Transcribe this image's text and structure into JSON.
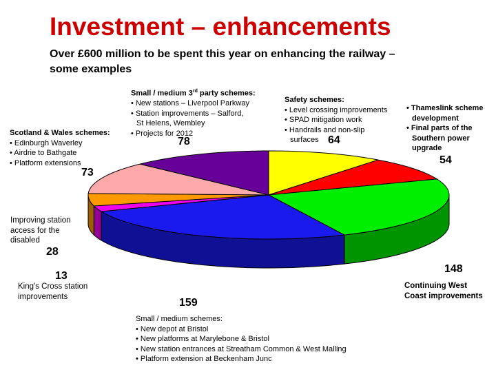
{
  "page": {
    "title": "Investment – enhancements",
    "subtitle": "Over £600 million to be spent this year on enhancing the railway – some examples"
  },
  "chart_data": {
    "type": "pie",
    "unit": "£ million",
    "slices": [
      {
        "value": 64,
        "color": "#ffff00",
        "heading": "Safety schemes:",
        "items": [
          "• Level crossing improvements",
          "• SPAD mitigation work",
          "• Handrails and non-slip",
          "surfaces"
        ]
      },
      {
        "value": 54,
        "color": "#ff0000",
        "heading": "",
        "items": [
          "• Thameslink scheme",
          "development",
          "• Final parts of the",
          "Southern power",
          "upgrade"
        ]
      },
      {
        "value": 148,
        "color": "#00ee00",
        "heading": "Continuing West Coast improvements",
        "items": []
      },
      {
        "value": 159,
        "color": "#1a1aee",
        "heading": "Small / medium schemes:",
        "items": [
          "• New depot at Bristol",
          "• New platforms at Marylebone & Bristol",
          "• New station entrances at Streatham Common & West Malling",
          "• Platform extension at Beckenham Junc"
        ]
      },
      {
        "value": 13,
        "color": "#ee00ee",
        "heading": "King's Cross station improvements",
        "items": []
      },
      {
        "value": 28,
        "color": "#ff9900",
        "heading": "Improving station access for the disabled",
        "items": []
      },
      {
        "value": 73,
        "color": "#ffaaaa",
        "heading": "Scotland & Wales schemes:",
        "items": [
          "• Edinburgh Waverley",
          "• Airdrie to Bathgate",
          "• Platform extensions"
        ]
      },
      {
        "value": 78,
        "color": "#660099",
        "heading": "Small / medium 3rd party schemes:",
        "items": [
          "• New stations – Liverpool Parkway",
          "• Station improvements – Salford,",
          "St Helens, Wembley",
          "• Projects for 2012"
        ]
      }
    ]
  }
}
